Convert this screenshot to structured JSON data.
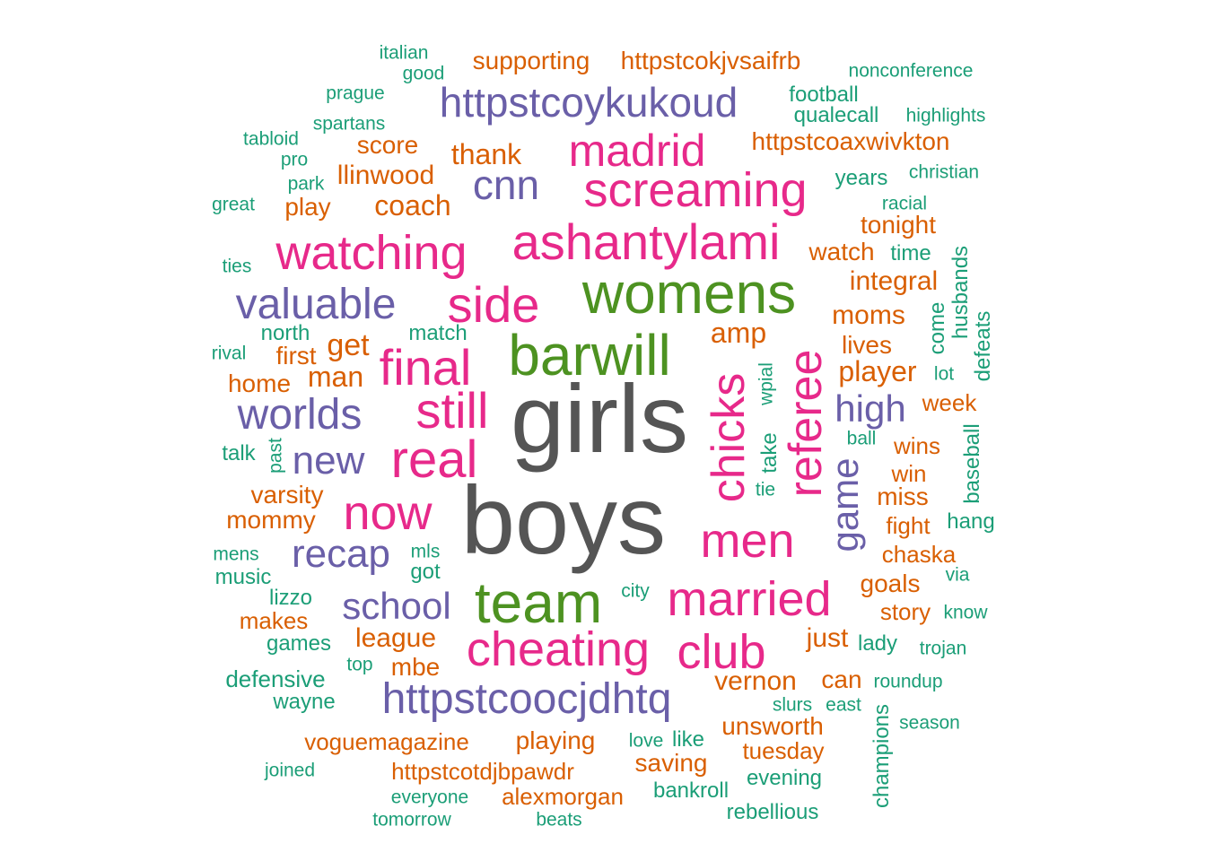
{
  "palette": {
    "gray": "#555555",
    "green": "#4d9221",
    "magenta": "#e7298a",
    "purple": "#6a5fa8",
    "orange": "#d95f02",
    "teal": "#1b9e77"
  },
  "words": [
    {
      "text": "girls",
      "group": "gray",
      "freq": 10
    },
    {
      "text": "boys",
      "group": "gray",
      "freq": 10
    },
    {
      "text": "womens",
      "group": "green",
      "freq": 6
    },
    {
      "text": "barwill",
      "group": "green",
      "freq": 6
    },
    {
      "text": "team",
      "group": "green",
      "freq": 6
    },
    {
      "text": "ashantylami",
      "group": "magenta",
      "freq": 5
    },
    {
      "text": "madrid",
      "group": "magenta",
      "freq": 5
    },
    {
      "text": "screaming",
      "group": "magenta",
      "freq": 5
    },
    {
      "text": "watching",
      "group": "magenta",
      "freq": 5
    },
    {
      "text": "side",
      "group": "magenta",
      "freq": 5
    },
    {
      "text": "final",
      "group": "magenta",
      "freq": 5
    },
    {
      "text": "still",
      "group": "magenta",
      "freq": 5
    },
    {
      "text": "real",
      "group": "magenta",
      "freq": 5
    },
    {
      "text": "now",
      "group": "magenta",
      "freq": 5
    },
    {
      "text": "men",
      "group": "magenta",
      "freq": 5
    },
    {
      "text": "married",
      "group": "magenta",
      "freq": 5
    },
    {
      "text": "cheating",
      "group": "magenta",
      "freq": 5
    },
    {
      "text": "club",
      "group": "magenta",
      "freq": 5
    },
    {
      "text": "chicks",
      "group": "magenta",
      "freq": 5
    },
    {
      "text": "referee",
      "group": "magenta",
      "freq": 5
    },
    {
      "text": "httpstcoykukoud",
      "group": "purple",
      "freq": 4
    },
    {
      "text": "cnn",
      "group": "purple",
      "freq": 4
    },
    {
      "text": "valuable",
      "group": "purple",
      "freq": 4
    },
    {
      "text": "worlds",
      "group": "purple",
      "freq": 4
    },
    {
      "text": "new",
      "group": "purple",
      "freq": 4
    },
    {
      "text": "recap",
      "group": "purple",
      "freq": 4
    },
    {
      "text": "school",
      "group": "purple",
      "freq": 4
    },
    {
      "text": "httpstcoocjdhtq",
      "group": "purple",
      "freq": 4
    },
    {
      "text": "high",
      "group": "purple",
      "freq": 4
    },
    {
      "text": "game",
      "group": "purple",
      "freq": 4
    },
    {
      "text": "supporting",
      "group": "orange",
      "freq": 3
    },
    {
      "text": "httpstcokjvsaifrb",
      "group": "orange",
      "freq": 3
    },
    {
      "text": "httpstcoaxwivkton",
      "group": "orange",
      "freq": 3
    },
    {
      "text": "score",
      "group": "orange",
      "freq": 3
    },
    {
      "text": "thank",
      "group": "orange",
      "freq": 3
    },
    {
      "text": "llinwood",
      "group": "orange",
      "freq": 3
    },
    {
      "text": "coach",
      "group": "orange",
      "freq": 3
    },
    {
      "text": "play",
      "group": "orange",
      "freq": 3
    },
    {
      "text": "tonight",
      "group": "orange",
      "freq": 3
    },
    {
      "text": "watch",
      "group": "orange",
      "freq": 3
    },
    {
      "text": "integral",
      "group": "orange",
      "freq": 3
    },
    {
      "text": "moms",
      "group": "orange",
      "freq": 3
    },
    {
      "text": "amp",
      "group": "orange",
      "freq": 3
    },
    {
      "text": "get",
      "group": "orange",
      "freq": 3
    },
    {
      "text": "first",
      "group": "orange",
      "freq": 3
    },
    {
      "text": "man",
      "group": "orange",
      "freq": 3
    },
    {
      "text": "home",
      "group": "orange",
      "freq": 3
    },
    {
      "text": "lives",
      "group": "orange",
      "freq": 3
    },
    {
      "text": "player",
      "group": "orange",
      "freq": 3
    },
    {
      "text": "week",
      "group": "orange",
      "freq": 3
    },
    {
      "text": "wins",
      "group": "orange",
      "freq": 3
    },
    {
      "text": "win",
      "group": "orange",
      "freq": 3
    },
    {
      "text": "miss",
      "group": "orange",
      "freq": 3
    },
    {
      "text": "varsity",
      "group": "orange",
      "freq": 3
    },
    {
      "text": "mommy",
      "group": "orange",
      "freq": 3
    },
    {
      "text": "fight",
      "group": "orange",
      "freq": 3
    },
    {
      "text": "chaska",
      "group": "orange",
      "freq": 3
    },
    {
      "text": "goals",
      "group": "orange",
      "freq": 3
    },
    {
      "text": "story",
      "group": "orange",
      "freq": 3
    },
    {
      "text": "makes",
      "group": "orange",
      "freq": 3
    },
    {
      "text": "league",
      "group": "orange",
      "freq": 3
    },
    {
      "text": "mbe",
      "group": "orange",
      "freq": 3
    },
    {
      "text": "just",
      "group": "orange",
      "freq": 3
    },
    {
      "text": "can",
      "group": "orange",
      "freq": 3
    },
    {
      "text": "vernon",
      "group": "orange",
      "freq": 3
    },
    {
      "text": "unsworth",
      "group": "orange",
      "freq": 3
    },
    {
      "text": "voguemagazine",
      "group": "orange",
      "freq": 3
    },
    {
      "text": "playing",
      "group": "orange",
      "freq": 3
    },
    {
      "text": "tuesday",
      "group": "orange",
      "freq": 3
    },
    {
      "text": "saving",
      "group": "orange",
      "freq": 3
    },
    {
      "text": "httpstcotdjbpawdr",
      "group": "orange",
      "freq": 3
    },
    {
      "text": "alexmorgan",
      "group": "orange",
      "freq": 3
    },
    {
      "text": "italian",
      "group": "teal",
      "freq": 2
    },
    {
      "text": "good",
      "group": "teal",
      "freq": 2
    },
    {
      "text": "nonconference",
      "group": "teal",
      "freq": 2
    },
    {
      "text": "prague",
      "group": "teal",
      "freq": 2
    },
    {
      "text": "football",
      "group": "teal",
      "freq": 2
    },
    {
      "text": "spartans",
      "group": "teal",
      "freq": 2
    },
    {
      "text": "qualecall",
      "group": "teal",
      "freq": 2
    },
    {
      "text": "highlights",
      "group": "teal",
      "freq": 2
    },
    {
      "text": "tabloid",
      "group": "teal",
      "freq": 2
    },
    {
      "text": "pro",
      "group": "teal",
      "freq": 2
    },
    {
      "text": "park",
      "group": "teal",
      "freq": 2
    },
    {
      "text": "christian",
      "group": "teal",
      "freq": 2
    },
    {
      "text": "years",
      "group": "teal",
      "freq": 2
    },
    {
      "text": "great",
      "group": "teal",
      "freq": 2
    },
    {
      "text": "racial",
      "group": "teal",
      "freq": 2
    },
    {
      "text": "ties",
      "group": "teal",
      "freq": 2
    },
    {
      "text": "time",
      "group": "teal",
      "freq": 2
    },
    {
      "text": "husbands",
      "group": "teal",
      "freq": 2
    },
    {
      "text": "come",
      "group": "teal",
      "freq": 2
    },
    {
      "text": "defeats",
      "group": "teal",
      "freq": 2
    },
    {
      "text": "north",
      "group": "teal",
      "freq": 2
    },
    {
      "text": "match",
      "group": "teal",
      "freq": 2
    },
    {
      "text": "rival",
      "group": "teal",
      "freq": 2
    },
    {
      "text": "lot",
      "group": "teal",
      "freq": 2
    },
    {
      "text": "wpial",
      "group": "teal",
      "freq": 2
    },
    {
      "text": "talk",
      "group": "teal",
      "freq": 2
    },
    {
      "text": "past",
      "group": "teal",
      "freq": 2
    },
    {
      "text": "take",
      "group": "teal",
      "freq": 2
    },
    {
      "text": "ball",
      "group": "teal",
      "freq": 2
    },
    {
      "text": "baseball",
      "group": "teal",
      "freq": 2
    },
    {
      "text": "tie",
      "group": "teal",
      "freq": 2
    },
    {
      "text": "hang",
      "group": "teal",
      "freq": 2
    },
    {
      "text": "mens",
      "group": "teal",
      "freq": 2
    },
    {
      "text": "mls",
      "group": "teal",
      "freq": 2
    },
    {
      "text": "music",
      "group": "teal",
      "freq": 2
    },
    {
      "text": "got",
      "group": "teal",
      "freq": 2
    },
    {
      "text": "via",
      "group": "teal",
      "freq": 2
    },
    {
      "text": "city",
      "group": "teal",
      "freq": 2
    },
    {
      "text": "lizzo",
      "group": "teal",
      "freq": 2
    },
    {
      "text": "know",
      "group": "teal",
      "freq": 2
    },
    {
      "text": "games",
      "group": "teal",
      "freq": 2
    },
    {
      "text": "lady",
      "group": "teal",
      "freq": 2
    },
    {
      "text": "trojan",
      "group": "teal",
      "freq": 2
    },
    {
      "text": "top",
      "group": "teal",
      "freq": 2
    },
    {
      "text": "defensive",
      "group": "teal",
      "freq": 2
    },
    {
      "text": "roundup",
      "group": "teal",
      "freq": 2
    },
    {
      "text": "wayne",
      "group": "teal",
      "freq": 2
    },
    {
      "text": "slurs",
      "group": "teal",
      "freq": 2
    },
    {
      "text": "east",
      "group": "teal",
      "freq": 2
    },
    {
      "text": "season",
      "group": "teal",
      "freq": 2
    },
    {
      "text": "champions",
      "group": "teal",
      "freq": 2
    },
    {
      "text": "love",
      "group": "teal",
      "freq": 2
    },
    {
      "text": "like",
      "group": "teal",
      "freq": 2
    },
    {
      "text": "joined",
      "group": "teal",
      "freq": 2
    },
    {
      "text": "evening",
      "group": "teal",
      "freq": 2
    },
    {
      "text": "everyone",
      "group": "teal",
      "freq": 2
    },
    {
      "text": "bankroll",
      "group": "teal",
      "freq": 2
    },
    {
      "text": "tomorrow",
      "group": "teal",
      "freq": 2
    },
    {
      "text": "beats",
      "group": "teal",
      "freq": 2
    },
    {
      "text": "rebellious",
      "group": "teal",
      "freq": 2
    }
  ]
}
